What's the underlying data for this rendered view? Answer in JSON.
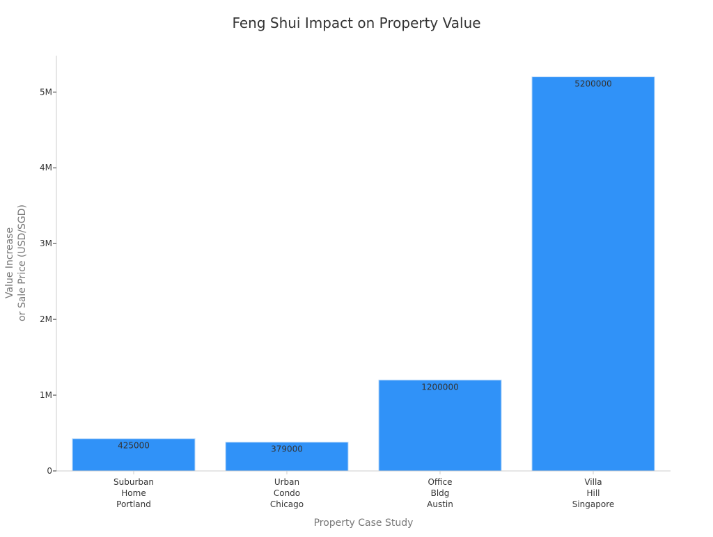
{
  "chart_data": {
    "type": "bar",
    "title": "Feng Shui Impact on Property Value",
    "xlabel": "Property Case Study",
    "ylabel": [
      "Value Increase",
      "or Sale Price (USD/SGD)"
    ],
    "categories": [
      [
        "Suburban",
        "Home",
        "Portland"
      ],
      [
        "Urban",
        "Condo",
        "Chicago"
      ],
      [
        "Office",
        "Bldg",
        "Austin"
      ],
      [
        "Villa",
        "Hill",
        "Singapore"
      ]
    ],
    "values": [
      425000,
      379000,
      1200000,
      5200000
    ],
    "data_labels": [
      "425000",
      "379000",
      "1200000",
      "5200000"
    ],
    "ylim": [
      0,
      5480000
    ],
    "yticks": [
      {
        "value": 0,
        "label": "0"
      },
      {
        "value": 1000000,
        "label": "1M"
      },
      {
        "value": 2000000,
        "label": "2M"
      },
      {
        "value": 3000000,
        "label": "3M"
      },
      {
        "value": 4000000,
        "label": "4M"
      },
      {
        "value": 5000000,
        "label": "5M"
      }
    ],
    "grid": false,
    "legend": "none",
    "colors": {
      "bar": "#3092F8",
      "bar_edge": "#B8D8F8",
      "title": "#333333",
      "axis_label": "#777777",
      "tick_label": "#333333",
      "data_label": "#333333",
      "axis_line": "#CCCCCC"
    }
  }
}
